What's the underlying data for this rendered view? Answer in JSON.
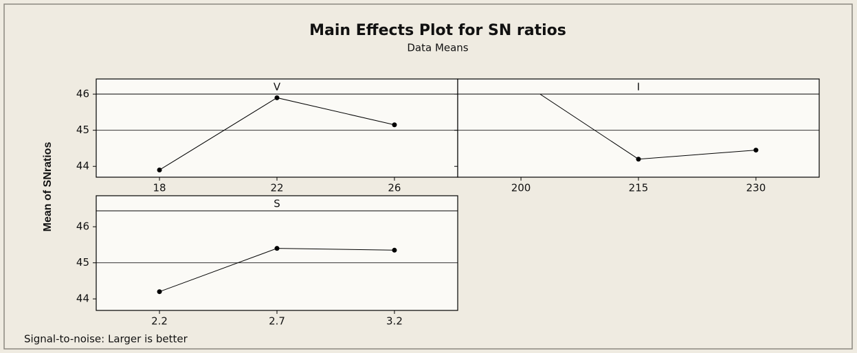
{
  "chart_data": {
    "type": "line",
    "title": "Main Effects Plot for SN ratios",
    "subtitle": "Data Means",
    "ylabel": "Mean of SNratios",
    "footnote": "Signal-to-noise: Larger is better",
    "reference_line": 45,
    "color": "#000000",
    "panels": [
      {
        "title": "V",
        "categories": [
          "18",
          "22",
          "26"
        ],
        "values": [
          43.9,
          45.9,
          45.15
        ],
        "ylim": [
          43.7,
          46.42
        ],
        "yticks": [
          44,
          45,
          46
        ],
        "ytick_labels": true
      },
      {
        "title": "I",
        "categories": [
          "200",
          "215",
          "230"
        ],
        "values": [
          46.35,
          44.2,
          44.45
        ],
        "ylim": [
          43.7,
          46.42
        ],
        "yticks": [
          44,
          45,
          46
        ],
        "ytick_labels": false
      },
      {
        "title": "S",
        "categories": [
          "2.2",
          "2.7",
          "3.2"
        ],
        "values": [
          44.2,
          45.4,
          45.35
        ],
        "ylim": [
          43.68,
          46.86
        ],
        "yticks": [
          44,
          45,
          46
        ],
        "ytick_labels": true
      }
    ]
  }
}
